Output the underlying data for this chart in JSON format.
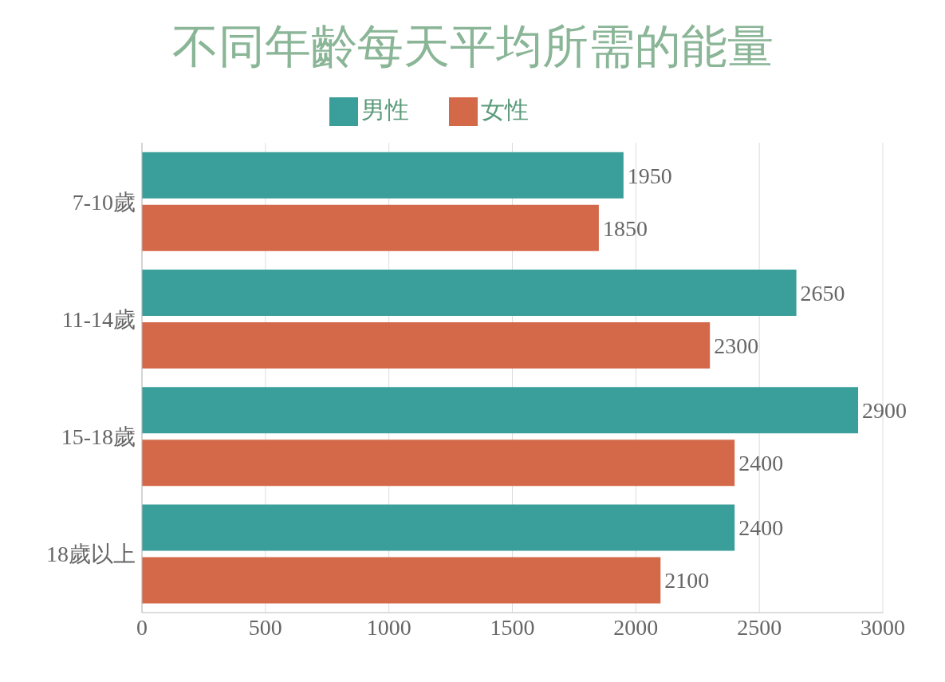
{
  "chart_data": {
    "type": "bar",
    "orientation": "horizontal",
    "title": "不同年齡每天平均所需的能量",
    "categories": [
      "7-10歲",
      "11-14歲",
      "15-18歲",
      "18歲以上"
    ],
    "series": [
      {
        "name": "男性",
        "color": "#3a9e9a",
        "values": [
          1950,
          2650,
          2900,
          2400
        ]
      },
      {
        "name": "女性",
        "color": "#d4694a",
        "values": [
          1850,
          2300,
          2400,
          2100
        ]
      }
    ],
    "xlim": [
      0,
      3000
    ],
    "xticks": [
      0,
      500,
      1000,
      1500,
      2000,
      2500,
      3000
    ],
    "grid": "x",
    "legend": "top",
    "data_labels": true
  }
}
